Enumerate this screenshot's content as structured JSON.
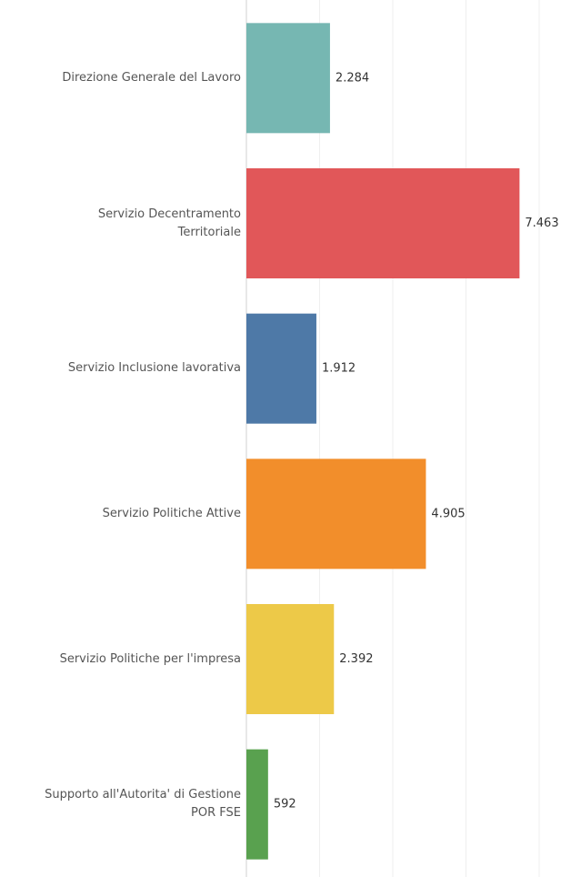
{
  "chart_data": {
    "type": "bar",
    "orientation": "horizontal",
    "categories": [
      "Direzione Generale del Lavoro",
      "Servizio Decentramento\nTerritoriale",
      "Servizio Inclusione lavorativa",
      "Servizio Politiche Attive",
      "Servizio Politiche per l'impresa",
      "Supporto all'Autorita' di Gestione\nPOR FSE"
    ],
    "values": [
      2284,
      7463,
      1912,
      4905,
      2392,
      592
    ],
    "value_labels": [
      "2.284",
      "7.463",
      "1.912",
      "4.905",
      "2.392",
      "592"
    ],
    "colors": [
      "#76b7b2",
      "#e15759",
      "#4e79a7",
      "#f28e2b",
      "#edc948",
      "#59a14f"
    ],
    "xlim": [
      0,
      8000
    ],
    "xticks": [
      0,
      2000,
      4000,
      6000,
      8000
    ],
    "grid": true
  }
}
